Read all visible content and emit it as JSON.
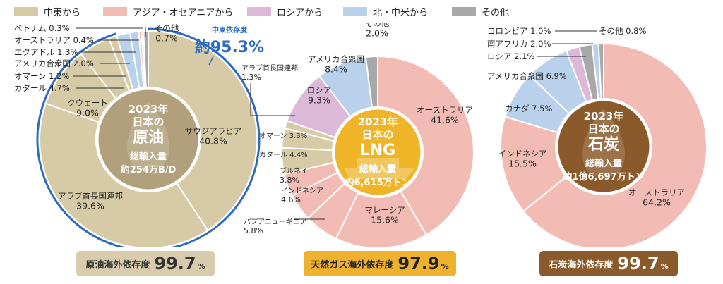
{
  "legend": [
    {
      "label": "中東から",
      "color": "#d6cba6"
    },
    {
      "label": "アジア・オセアニアから",
      "color": "#f2bcb4"
    },
    {
      "label": "ロシアから",
      "color": "#dcb8d9"
    },
    {
      "label": "北・中米から",
      "color": "#b9d1ea"
    },
    {
      "label": "その他",
      "color": "#a8a8a8"
    }
  ],
  "chart_data": [
    {
      "type": "pie",
      "center_label": [
        "2023年",
        "日本の",
        "原油",
        "総輸入量",
        "約254万B/D"
      ],
      "center_color": "#b2a07c",
      "highlight": {
        "title": "中東依存度",
        "value": "約95.3%"
      },
      "slices": [
        {
          "label": "サウジアラビア",
          "value": 40.8,
          "value_label": "40.8%",
          "group": "中東から"
        },
        {
          "label": "アラブ首長国連邦",
          "value": 39.6,
          "value_label": "39.6%",
          "group": "中東から"
        },
        {
          "label": "クウェート",
          "value": 9.0,
          "value_label": "9.0%",
          "group": "中東から"
        },
        {
          "label": "カタール",
          "value": 4.7,
          "value_label": "4.7%",
          "group": "中東から"
        },
        {
          "label": "オマーン",
          "value": 1.2,
          "value_label": "1.2%",
          "group": "中東から"
        },
        {
          "label": "アメリカ合衆国",
          "value": 2.0,
          "value_label": "2.0%",
          "group": "北・中米から"
        },
        {
          "label": "エクアドル",
          "value": 1.3,
          "value_label": "1.3%",
          "group": "北・中米から"
        },
        {
          "label": "オーストラリア",
          "value": 0.4,
          "value_label": "0.4%",
          "group": "アジア・オセアニアから"
        },
        {
          "label": "ベトナム",
          "value": 0.3,
          "value_label": "0.3%",
          "group": "アジア・オセアニアから"
        },
        {
          "label": "その他",
          "value": 0.7,
          "value_label": "0.7%",
          "group": "その他"
        }
      ],
      "badge": {
        "label": "原油海外依存度",
        "value": "99.7",
        "unit": "%"
      }
    },
    {
      "type": "pie",
      "center_label": [
        "2023年",
        "日本の",
        "LNG",
        "総輸入量",
        "約6,615万トン"
      ],
      "center_color": "#f0b429",
      "slices": [
        {
          "label": "オーストラリア",
          "value": 41.6,
          "value_label": "41.6%",
          "group": "アジア・オセアニアから"
        },
        {
          "label": "マレーシア",
          "value": 15.6,
          "value_label": "15.6%",
          "group": "アジア・オセアニアから"
        },
        {
          "label": "パプアニューギニア",
          "value": 5.8,
          "value_label": "5.8%",
          "group": "アジア・オセアニアから"
        },
        {
          "label": "インドネシア",
          "value": 4.6,
          "value_label": "4.6%",
          "group": "アジア・オセアニアから"
        },
        {
          "label": "ブルネイ",
          "value": 3.8,
          "value_label": "3.8%",
          "group": "アジア・オセアニアから"
        },
        {
          "label": "カタール",
          "value": 4.4,
          "value_label": "4.4%",
          "group": "中東から"
        },
        {
          "label": "オマーン",
          "value": 3.3,
          "value_label": "3.3%",
          "group": "中東から"
        },
        {
          "label": "アラブ首長国連邦",
          "value": 1.3,
          "value_label": "1.3%",
          "group": "中東から"
        },
        {
          "label": "ロシア",
          "value": 9.3,
          "value_label": "9.3%",
          "group": "ロシアから"
        },
        {
          "label": "アメリカ合衆国",
          "value": 8.4,
          "value_label": "8.4%",
          "group": "北・中米から"
        },
        {
          "label": "その他",
          "value": 2.0,
          "value_label": "2.0%",
          "group": "その他"
        }
      ],
      "badge": {
        "label": "天然ガス海外依存度",
        "value": "97.9",
        "unit": "%"
      }
    },
    {
      "type": "pie",
      "center_label": [
        "2023年",
        "日本の",
        "石炭",
        "総輸入量",
        "約1億6,697万トン"
      ],
      "center_color": "#8b5a2b",
      "slices": [
        {
          "label": "オーストラリア",
          "value": 64.2,
          "value_label": "64.2%",
          "group": "アジア・オセアニアから"
        },
        {
          "label": "インドネシア",
          "value": 15.5,
          "value_label": "15.5%",
          "group": "アジア・オセアニアから"
        },
        {
          "label": "カナダ",
          "value": 7.5,
          "value_label": "7.5%",
          "group": "北・中米から"
        },
        {
          "label": "アメリカ合衆国",
          "value": 6.9,
          "value_label": "6.9%",
          "group": "北・中米から"
        },
        {
          "label": "ロシア",
          "value": 2.1,
          "value_label": "2.1%",
          "group": "ロシアから"
        },
        {
          "label": "南アフリカ",
          "value": 2.0,
          "value_label": "2.0%",
          "group": "その他"
        },
        {
          "label": "コロンビア",
          "value": 1.0,
          "value_label": "1.0%",
          "group": "北・中米から"
        },
        {
          "label": "その他",
          "value": 0.8,
          "value_label": "0.8%",
          "group": "その他"
        }
      ],
      "badge": {
        "label": "石炭海外依存度",
        "value": "99.7",
        "unit": "%"
      }
    }
  ]
}
